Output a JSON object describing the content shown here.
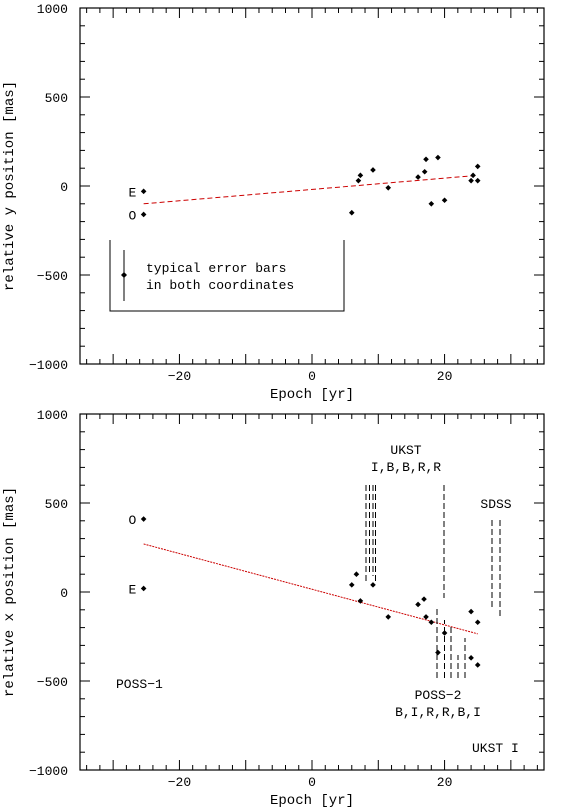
{
  "chart_data": [
    {
      "type": "scatter",
      "xlabel": "Epoch [yr]",
      "ylabel": "relative y position [mas]",
      "xlim": [
        -35,
        35
      ],
      "ylim": [
        -1000,
        1000
      ],
      "xticks": [
        -20,
        0,
        20
      ],
      "yticks": [
        -1000,
        -500,
        0,
        500,
        1000
      ],
      "points": [
        {
          "x": -25.4,
          "y": -30
        },
        {
          "x": -25.4,
          "y": -160
        },
        {
          "x": 6.0,
          "y": -150
        },
        {
          "x": 7.0,
          "y": 30
        },
        {
          "x": 7.3,
          "y": 60
        },
        {
          "x": 9.2,
          "y": 90
        },
        {
          "x": 11.5,
          "y": -10
        },
        {
          "x": 16.0,
          "y": 50
        },
        {
          "x": 17.0,
          "y": 80
        },
        {
          "x": 17.2,
          "y": 150
        },
        {
          "x": 18.0,
          "y": -100
        },
        {
          "x": 19.0,
          "y": 160
        },
        {
          "x": 20.0,
          "y": -80
        },
        {
          "x": 24.0,
          "y": 30
        },
        {
          "x": 24.3,
          "y": 60
        },
        {
          "x": 25.0,
          "y": 110
        },
        {
          "x": 25.0,
          "y": 30
        }
      ],
      "fit_line": {
        "x": [
          -25.4,
          25.0
        ],
        "y": [
          -100,
          60
        ]
      },
      "annotations": [
        {
          "id": "E",
          "text": "E"
        },
        {
          "id": "O",
          "text": "O"
        }
      ],
      "legend": {
        "line1": "typical error bars",
        "line2": "in both coordinates"
      }
    },
    {
      "type": "scatter",
      "xlabel": "Epoch [yr]",
      "ylabel": "relative x position [mas]",
      "xlim": [
        -35,
        35
      ],
      "ylim": [
        -1000,
        1000
      ],
      "xticks": [
        -20,
        0,
        20
      ],
      "yticks": [
        -1000,
        -500,
        0,
        500,
        1000
      ],
      "points": [
        {
          "x": -25.4,
          "y": 410
        },
        {
          "x": -25.4,
          "y": 20
        },
        {
          "x": 6.0,
          "y": 40
        },
        {
          "x": 6.7,
          "y": 100
        },
        {
          "x": 7.3,
          "y": -50
        },
        {
          "x": 9.2,
          "y": 40
        },
        {
          "x": 11.5,
          "y": -140
        },
        {
          "x": 16.0,
          "y": -70
        },
        {
          "x": 16.9,
          "y": -40
        },
        {
          "x": 17.2,
          "y": -140
        },
        {
          "x": 18.0,
          "y": -170
        },
        {
          "x": 19.0,
          "y": -340
        },
        {
          "x": 20.0,
          "y": -230
        },
        {
          "x": 24.0,
          "y": -110
        },
        {
          "x": 24.0,
          "y": -370
        },
        {
          "x": 25.0,
          "y": -170
        },
        {
          "x": 25.0,
          "y": -410
        }
      ],
      "fit_line": {
        "x": [
          -25.4,
          25.0
        ],
        "y": [
          270,
          -235
        ]
      },
      "annotations": [
        {
          "id": "O",
          "text": "O"
        },
        {
          "id": "E",
          "text": "E"
        },
        {
          "id": "UKST_title",
          "text": "UKST"
        },
        {
          "id": "UKST_bands",
          "text": "I,B,B,R,R"
        },
        {
          "id": "SDSS",
          "text": "SDSS"
        },
        {
          "id": "POSS1",
          "text": "POSS−1"
        },
        {
          "id": "POSS2_title",
          "text": "POSS−2"
        },
        {
          "id": "POSS2_bands",
          "text": "B,I,R,R,B,I"
        },
        {
          "id": "UKST_I",
          "text": "UKST I"
        }
      ]
    }
  ],
  "colors": {
    "fit_line": "#cc0000",
    "points": "#000000",
    "axes": "#000000"
  }
}
